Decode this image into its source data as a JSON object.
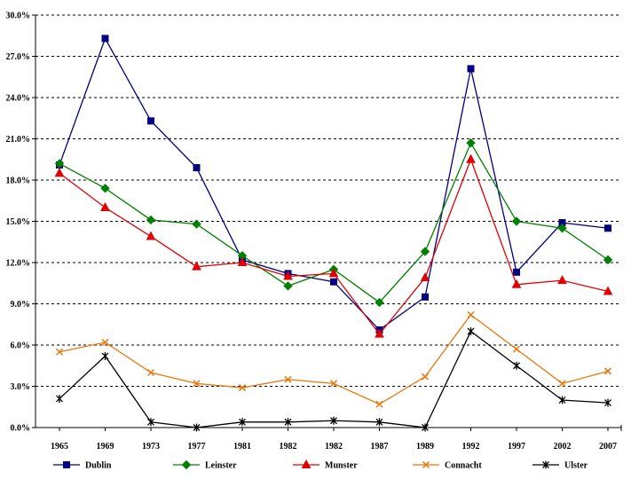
{
  "chart_data": {
    "type": "line",
    "title": "",
    "xlabel": "",
    "ylabel": "",
    "categories": [
      "1965",
      "1969",
      "1973",
      "1977",
      "1981",
      "1982",
      "1982",
      "1987",
      "1989",
      "1992",
      "1997",
      "2002",
      "2007"
    ],
    "ylim": [
      0,
      30
    ],
    "yticks": [
      "0.0%",
      "3.0%",
      "6.0%",
      "9.0%",
      "12.0%",
      "15.0%",
      "18.0%",
      "21.0%",
      "24.0%",
      "27.0%",
      "30.0%"
    ],
    "grid": "horizontal dashed",
    "legend_position": "bottom",
    "series": [
      {
        "name": "Dublin",
        "color": "#000080",
        "marker": "square",
        "values": [
          19.1,
          28.3,
          22.3,
          18.9,
          12.2,
          11.2,
          10.6,
          7.1,
          9.5,
          26.1,
          11.3,
          14.9,
          14.5
        ]
      },
      {
        "name": "Leinster",
        "color": "#008000",
        "marker": "diamond",
        "values": [
          19.2,
          17.4,
          15.1,
          14.8,
          12.5,
          10.3,
          11.5,
          9.1,
          12.8,
          20.7,
          15.0,
          14.5,
          12.2
        ]
      },
      {
        "name": "Munster",
        "color": "#e00000",
        "marker": "triangle",
        "values": [
          18.5,
          16.0,
          13.9,
          11.7,
          12.0,
          11.0,
          11.2,
          6.8,
          10.9,
          19.5,
          10.4,
          10.7,
          9.9
        ]
      },
      {
        "name": "Connacht",
        "color": "#e8760a",
        "marker": "x",
        "values": [
          5.5,
          6.2,
          4.0,
          3.2,
          2.9,
          3.5,
          3.2,
          1.7,
          3.7,
          8.2,
          5.7,
          3.2,
          4.1
        ]
      },
      {
        "name": "Ulster",
        "color": "#000000",
        "marker": "star",
        "values": [
          2.1,
          5.2,
          0.4,
          0.0,
          0.4,
          0.4,
          0.5,
          0.4,
          0.0,
          7.0,
          4.5,
          2.0,
          1.8
        ]
      }
    ]
  }
}
